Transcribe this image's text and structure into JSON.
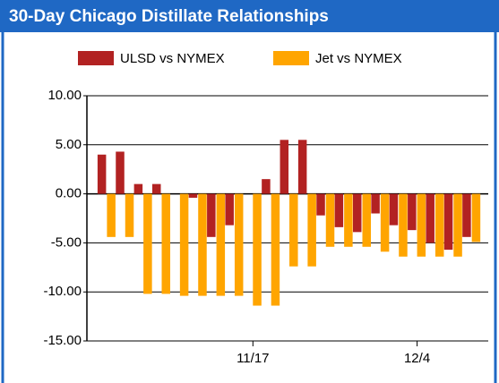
{
  "chart_data": {
    "type": "bar",
    "title": "30-Day Chicago Distillate Relationships",
    "categories": [
      null,
      null,
      null,
      null,
      null,
      null,
      null,
      null,
      "11/17",
      null,
      null,
      null,
      null,
      null,
      null,
      null,
      null,
      "12/4",
      null,
      null,
      null
    ],
    "series": [
      {
        "name": "ULSD vs NYMEX",
        "color": "#b22222",
        "values": [
          4.0,
          4.3,
          1.0,
          1.0,
          0.0,
          -0.4,
          -4.4,
          -3.2,
          0.0,
          1.5,
          5.5,
          5.5,
          -2.2,
          -3.4,
          -3.9,
          -2.0,
          -3.2,
          -3.7,
          -5.0,
          -5.7,
          -4.4
        ]
      },
      {
        "name": "Jet vs NYMEX",
        "color": "#ffa500",
        "values": [
          -4.4,
          -4.4,
          -10.2,
          -10.2,
          -10.4,
          -10.4,
          -10.4,
          -10.4,
          -11.4,
          -11.4,
          -7.4,
          -7.4,
          -5.4,
          -5.4,
          -5.4,
          -5.9,
          -6.4,
          -6.4,
          -6.4,
          -6.4,
          -4.9
        ]
      }
    ],
    "ylim": [
      -15,
      10
    ],
    "yticks": [
      {
        "value": 10,
        "label": "10.00"
      },
      {
        "value": 5,
        "label": "5.00"
      },
      {
        "value": 0,
        "label": "0.00"
      },
      {
        "value": -5,
        "label": "-5.00"
      },
      {
        "value": -10,
        "label": "-10.00"
      },
      {
        "value": -15,
        "label": "-15.00"
      }
    ],
    "grid": true
  }
}
